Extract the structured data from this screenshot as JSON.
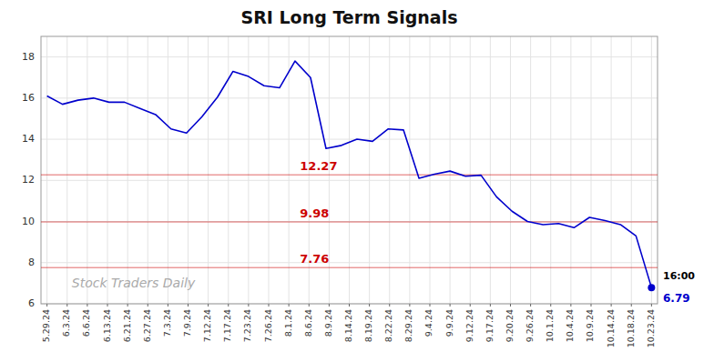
{
  "chart_data": {
    "type": "line",
    "title": "SRI Long Term Signals",
    "x": [
      0,
      0.7692307692,
      1.5384615385,
      2.3076923077,
      3.0769230769,
      3.8461538462,
      4.6153846154,
      5.3846153846,
      6.1538461538,
      6.9230769231,
      7.6923076923,
      8.4615384615,
      9.2307692308,
      10,
      10.7692307692,
      11.5384615385,
      12.3076923077,
      13.0769230769,
      13.8461538462,
      14.6153846154,
      15.3846153846,
      16.1538461538,
      16.9230769231,
      17.6923076923,
      18.4615384615,
      19.2307692308,
      20,
      20.7692307692,
      21.5384615385,
      22.3076923077,
      23.0769230769,
      23.8461538462,
      24.6153846154,
      25.3846153846,
      26.1538461538,
      26.9230769231,
      27.6923076923,
      28.4615384615,
      29.2307692308,
      30
    ],
    "values": [
      16.1,
      15.7,
      15.9,
      16.0,
      15.8,
      15.8,
      15.5,
      15.2,
      14.5,
      14.3,
      15.1,
      16.05,
      17.3,
      17.05,
      16.6,
      16.5,
      17.8,
      17.0,
      13.55,
      13.7,
      14.0,
      13.9,
      14.5,
      14.45,
      12.1,
      12.3,
      12.45,
      12.2,
      12.25,
      11.2,
      10.5,
      10.0,
      9.85,
      9.9,
      9.7,
      10.2,
      10.05,
      9.85,
      9.3,
      6.79
    ],
    "color": "#0000cc",
    "xlim": [
      -0.3,
      30.3
    ],
    "xticks": [
      {
        "value": 0,
        "label": "5.29.24"
      },
      {
        "value": 1,
        "label": "6.3.24"
      },
      {
        "value": 2,
        "label": "6.6.24"
      },
      {
        "value": 3,
        "label": "6.13.24"
      },
      {
        "value": 4,
        "label": "6.21.24"
      },
      {
        "value": 5,
        "label": "6.27.24"
      },
      {
        "value": 6,
        "label": "7.3.24"
      },
      {
        "value": 7,
        "label": "7.9.24"
      },
      {
        "value": 8,
        "label": "7.12.24"
      },
      {
        "value": 9,
        "label": "7.17.24"
      },
      {
        "value": 10,
        "label": "7.23.24"
      },
      {
        "value": 11,
        "label": "7.26.24"
      },
      {
        "value": 12,
        "label": "8.1.24"
      },
      {
        "value": 13,
        "label": "8.6.24"
      },
      {
        "value": 14,
        "label": "8.9.24"
      },
      {
        "value": 15,
        "label": "8.14.24"
      },
      {
        "value": 16,
        "label": "8.19.24"
      },
      {
        "value": 17,
        "label": "8.22.24"
      },
      {
        "value": 18,
        "label": "8.29.24"
      },
      {
        "value": 19,
        "label": "9.4.24"
      },
      {
        "value": 20,
        "label": "9.9.24"
      },
      {
        "value": 21,
        "label": "9.12.24"
      },
      {
        "value": 22,
        "label": "9.17.24"
      },
      {
        "value": 23,
        "label": "9.20.24"
      },
      {
        "value": 24,
        "label": "9.26.24"
      },
      {
        "value": 25,
        "label": "10.1.24"
      },
      {
        "value": 26,
        "label": "10.4.24"
      },
      {
        "value": 27,
        "label": "10.9.24"
      },
      {
        "value": 28,
        "label": "10.14.24"
      },
      {
        "value": 29,
        "label": "10.18.24"
      },
      {
        "value": 30,
        "label": "10.23.24"
      }
    ],
    "ylim": [
      6,
      19
    ],
    "yticks": [
      6,
      8,
      10,
      12,
      14,
      16,
      18
    ],
    "grid": true,
    "hlines": [
      {
        "value": 12.27,
        "label": "12.27",
        "color": "#cc0000"
      },
      {
        "value": 9.98,
        "label": "9.98",
        "color": "#cc0000"
      },
      {
        "value": 7.76,
        "label": "7.76",
        "color": "#cc0000"
      }
    ],
    "annotations": [
      "16:00",
      "6.79"
    ],
    "watermark": "Stock Traders Daily"
  }
}
